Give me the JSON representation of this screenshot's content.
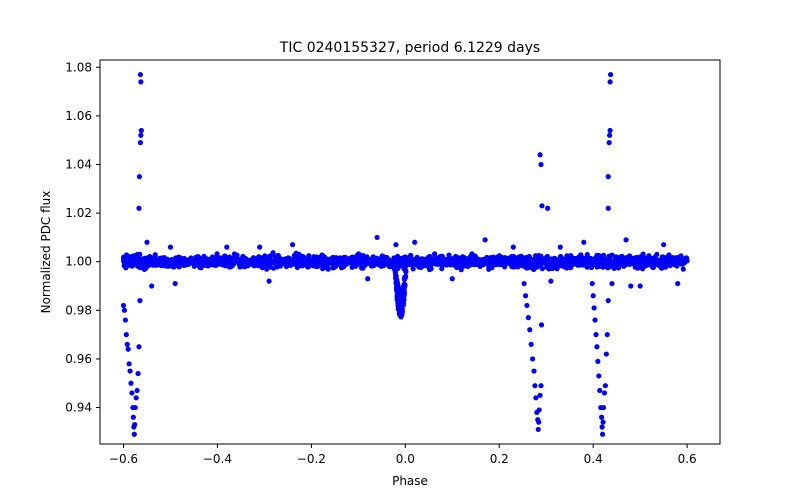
{
  "chart_data": {
    "type": "scatter",
    "title": "TIC 0240155327, period 6.1229 days",
    "xlabel": "Phase",
    "ylabel": "Normalized PDC flux",
    "xlim": [
      -0.65,
      0.67
    ],
    "ylim": [
      0.925,
      1.083
    ],
    "x_ticks": [
      -0.6,
      -0.4,
      -0.2,
      0.0,
      0.2,
      0.4,
      0.6
    ],
    "x_tick_labels": [
      "−0.6",
      "−0.4",
      "−0.2",
      "0.0",
      "0.2",
      "0.4",
      "0.6"
    ],
    "y_ticks": [
      0.94,
      0.96,
      0.98,
      1.0,
      1.02,
      1.04,
      1.06,
      1.08
    ],
    "y_tick_labels": [
      "0.94",
      "0.96",
      "0.98",
      "1.00",
      "1.02",
      "1.04",
      "1.06",
      "1.08"
    ],
    "marker_color": "#0000ff",
    "grid": false,
    "baseline": {
      "x_range": [
        -0.6,
        0.6
      ],
      "center": 1.0,
      "spread": 0.0025,
      "point_count": 2000,
      "upper_outliers": [
        [
          -0.55,
          1.008
        ],
        [
          -0.5,
          1.006
        ],
        [
          -0.38,
          1.006
        ],
        [
          -0.31,
          1.006
        ],
        [
          -0.24,
          1.007
        ],
        [
          -0.06,
          1.01
        ],
        [
          -0.02,
          1.007
        ],
        [
          0.02,
          1.008
        ],
        [
          0.17,
          1.009
        ],
        [
          0.23,
          1.006
        ],
        [
          0.33,
          1.006
        ],
        [
          0.38,
          1.008
        ],
        [
          0.47,
          1.009
        ],
        [
          0.55,
          1.007
        ]
      ],
      "lower_outliers": [
        [
          -0.54,
          0.99
        ],
        [
          -0.49,
          0.991
        ],
        [
          -0.29,
          0.992
        ],
        [
          -0.08,
          0.993
        ],
        [
          0.1,
          0.993
        ],
        [
          0.31,
          0.992
        ],
        [
          0.44,
          0.991
        ],
        [
          0.48,
          0.99
        ],
        [
          0.5,
          0.99
        ],
        [
          0.58,
          0.991
        ]
      ]
    },
    "dip": {
      "x_center": -0.01,
      "half_width": 0.012,
      "depth": 0.022,
      "point_count": 180
    },
    "spike_points": [
      [
        -0.564,
        1.077
      ],
      [
        -0.563,
        1.074
      ],
      [
        -0.562,
        1.054
      ],
      [
        -0.563,
        1.052
      ],
      [
        -0.564,
        1.049
      ],
      [
        -0.566,
        1.035
      ],
      [
        -0.567,
        1.022
      ],
      [
        0.287,
        1.044
      ],
      [
        0.289,
        1.04
      ],
      [
        0.291,
        1.023
      ],
      [
        0.303,
        1.022
      ],
      [
        0.437,
        1.077
      ],
      [
        0.436,
        1.074
      ],
      [
        0.436,
        1.054
      ],
      [
        0.435,
        1.052
      ],
      [
        0.434,
        1.049
      ],
      [
        0.432,
        1.035
      ],
      [
        0.432,
        1.022
      ]
    ],
    "drop_points": [
      [
        -0.6,
        0.982
      ],
      [
        -0.598,
        0.98
      ],
      [
        -0.596,
        0.976
      ],
      [
        -0.594,
        0.97
      ],
      [
        -0.592,
        0.966
      ],
      [
        -0.59,
        0.964
      ],
      [
        -0.588,
        0.958
      ],
      [
        -0.586,
        0.955
      ],
      [
        -0.584,
        0.95
      ],
      [
        -0.582,
        0.946
      ],
      [
        -0.58,
        0.94
      ],
      [
        -0.579,
        0.936
      ],
      [
        -0.578,
        0.932
      ],
      [
        -0.577,
        0.929
      ],
      [
        -0.576,
        0.933
      ],
      [
        -0.575,
        0.94
      ],
      [
        -0.573,
        0.944
      ],
      [
        -0.571,
        0.947
      ],
      [
        -0.569,
        0.954
      ],
      [
        -0.567,
        0.965
      ],
      [
        -0.565,
        0.984
      ],
      [
        0.253,
        0.991
      ],
      [
        0.256,
        0.986
      ],
      [
        0.259,
        0.982
      ],
      [
        0.262,
        0.977
      ],
      [
        0.265,
        0.972
      ],
      [
        0.268,
        0.966
      ],
      [
        0.271,
        0.96
      ],
      [
        0.274,
        0.955
      ],
      [
        0.276,
        0.949
      ],
      [
        0.278,
        0.944
      ],
      [
        0.28,
        0.938
      ],
      [
        0.282,
        0.935
      ],
      [
        0.283,
        0.931
      ],
      [
        0.284,
        0.934
      ],
      [
        0.285,
        0.939
      ],
      [
        0.287,
        0.945
      ],
      [
        0.289,
        0.949
      ],
      [
        0.29,
        0.974
      ],
      [
        0.398,
        0.991
      ],
      [
        0.4,
        0.986
      ],
      [
        0.402,
        0.981
      ],
      [
        0.404,
        0.976
      ],
      [
        0.406,
        0.97
      ],
      [
        0.408,
        0.965
      ],
      [
        0.41,
        0.959
      ],
      [
        0.412,
        0.953
      ],
      [
        0.414,
        0.947
      ],
      [
        0.416,
        0.94
      ],
      [
        0.418,
        0.936
      ],
      [
        0.419,
        0.932
      ],
      [
        0.42,
        0.929
      ],
      [
        0.421,
        0.934
      ],
      [
        0.422,
        0.94
      ],
      [
        0.424,
        0.946
      ],
      [
        0.426,
        0.949
      ],
      [
        0.428,
        0.962
      ],
      [
        0.43,
        0.97
      ],
      [
        0.432,
        0.984
      ]
    ]
  }
}
